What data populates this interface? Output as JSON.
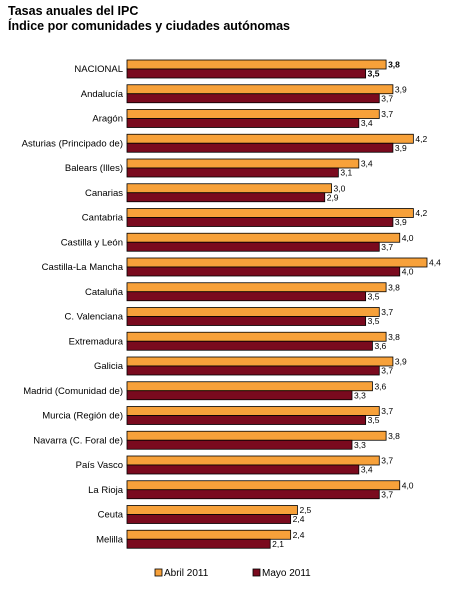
{
  "header": {
    "title": "Tasas anuales del IPC",
    "subtitle": "Índice por comunidades y ciudades autónomas"
  },
  "colors": {
    "series_abril": "#F7A13A",
    "series_mayo": "#7A0A1E",
    "border": "#000000"
  },
  "chart_data": {
    "type": "bar",
    "orientation": "horizontal",
    "title": "Tasas anuales del IPC",
    "subtitle": "Índice por comunidades y ciudades autónomas",
    "categories": [
      "NACIONAL",
      "Andalucía",
      "Aragón",
      "Asturias (Principado de)",
      "Balears (Illes)",
      "Canarias",
      "Cantabria",
      "Castilla y León",
      "Castilla-La Mancha",
      "Cataluña",
      "C. Valenciana",
      "Extremadura",
      "Galicia",
      "Madrid (Comunidad de)",
      "Murcia (Región de)",
      "Navarra (C. Foral de)",
      "País Vasco",
      "La Rioja",
      "Ceuta",
      "Melilla"
    ],
    "series": [
      {
        "name": "Abril 2011",
        "values": [
          3.8,
          3.9,
          3.7,
          4.2,
          3.4,
          3.0,
          4.2,
          4.0,
          4.4,
          3.8,
          3.7,
          3.8,
          3.9,
          3.6,
          3.7,
          3.8,
          3.7,
          4.0,
          2.5,
          2.4
        ],
        "labels": [
          "3,8",
          "3,9",
          "3,7",
          "4,2",
          "3,4",
          "3,0",
          "4,2",
          "4,0",
          "4,4",
          "3,8",
          "3,7",
          "3,8",
          "3,9",
          "3,6",
          "3,7",
          "3,8",
          "3,7",
          "4,0",
          "2,5",
          "2,4"
        ]
      },
      {
        "name": "Mayo 2011",
        "values": [
          3.5,
          3.7,
          3.4,
          3.9,
          3.1,
          2.9,
          3.9,
          3.7,
          4.0,
          3.5,
          3.5,
          3.6,
          3.7,
          3.3,
          3.5,
          3.3,
          3.4,
          3.7,
          2.4,
          2.1
        ],
        "labels": [
          "3,5",
          "3,7",
          "3,4",
          "3,9",
          "3,1",
          "2,9",
          "3,9",
          "3,7",
          "4,0",
          "3,5",
          "3,5",
          "3,6",
          "3,7",
          "3,3",
          "3,5",
          "3,3",
          "3,4",
          "3,7",
          "2,4",
          "2,1"
        ]
      }
    ],
    "xlim": [
      0,
      4.4
    ],
    "grid": false,
    "legend_position": "bottom"
  }
}
